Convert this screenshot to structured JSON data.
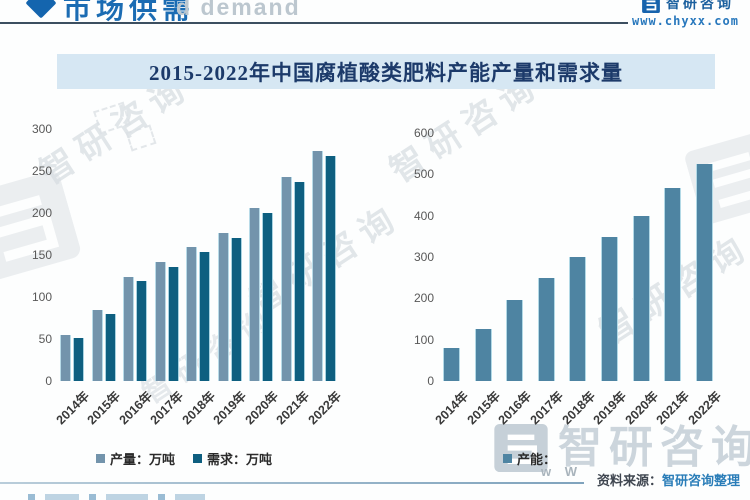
{
  "header": {
    "section_title": "市场供需",
    "brand_name": "智研咨询",
    "website": "www.chyxx.com"
  },
  "title": "2015-2022年中国腐植酸类肥料产能产量和需求量",
  "chart_data": [
    {
      "type": "bar",
      "title": "",
      "categories": [
        "2014年",
        "2015年",
        "2016年",
        "2017年",
        "2018年",
        "2019年",
        "2020年",
        "2021年",
        "2022年"
      ],
      "series": [
        {
          "name": "产量：万吨",
          "color": "#7394ac",
          "values": [
            55,
            85,
            124,
            142,
            160,
            176,
            206,
            243,
            274
          ]
        },
        {
          "name": "需求：万吨",
          "color": "#0e5f80",
          "values": [
            51,
            80,
            119,
            136,
            154,
            170,
            200,
            237,
            268
          ]
        }
      ],
      "xlabel": "",
      "ylabel": "",
      "ylim": [
        0,
        300
      ],
      "ytick_step": 50,
      "grid": false,
      "legend_position": "bottom"
    },
    {
      "type": "bar",
      "title": "",
      "categories": [
        "2014年",
        "2015年",
        "2016年",
        "2017年",
        "2018年",
        "2019年",
        "2020年",
        "2021年",
        "2022年"
      ],
      "series": [
        {
          "name": "产能：",
          "color": "#4e84a2",
          "values": [
            80,
            125,
            196,
            248,
            299,
            349,
            398,
            467,
            526
          ]
        }
      ],
      "xlabel": "",
      "ylabel": "",
      "ylim": [
        0,
        600
      ],
      "ytick_step": 100,
      "grid": false,
      "legend_position": "bottom"
    }
  ],
  "footer": {
    "source_label": "资料来源：",
    "source_value": "智研咨询整理"
  },
  "watermarks": {
    "brand_text": "智研咨询",
    "english_fragment": "d demand",
    "w_fragment": "w W"
  }
}
